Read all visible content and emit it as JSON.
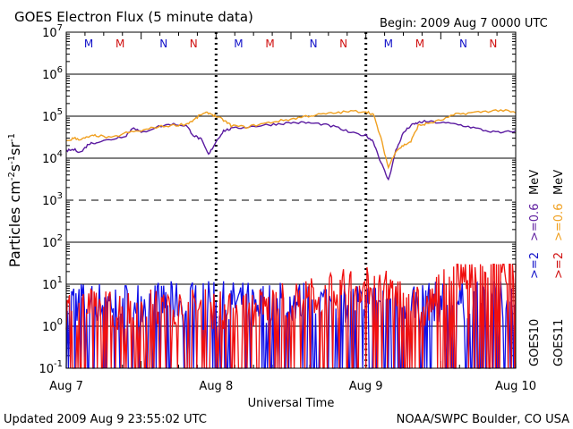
{
  "chart_data": {
    "type": "line",
    "title": "GOES Electron Flux (5 minute data)",
    "begin_label": "Begin: 2009 Aug 7 0000 UTC",
    "xlabel": "Universal Time",
    "ylabel_main": "Particles cm",
    "ylabel_exp1": "-2",
    "ylabel_s": "s",
    "ylabel_exp2": "-1",
    "ylabel_sr": "sr",
    "ylabel_exp3": "-1",
    "x_unit": "day offset from 2009 Aug 7 0000 UTC",
    "xlim": [
      0,
      3
    ],
    "ylim": [
      0.1,
      10000000
    ],
    "yscale": "log",
    "x_ticks": [
      {
        "x": 0,
        "label": "Aug 7"
      },
      {
        "x": 1,
        "label": "Aug 8"
      },
      {
        "x": 2,
        "label": "Aug 9"
      },
      {
        "x": 3,
        "label": "Aug 10"
      }
    ],
    "y_ticks": [
      {
        "v": 10000000,
        "base": "10",
        "exp": "7"
      },
      {
        "v": 1000000,
        "base": "10",
        "exp": "6"
      },
      {
        "v": 100000,
        "base": "10",
        "exp": "5"
      },
      {
        "v": 10000,
        "base": "10",
        "exp": "4"
      },
      {
        "v": 1000,
        "base": "10",
        "exp": "3"
      },
      {
        "v": 100,
        "base": "10",
        "exp": "2"
      },
      {
        "v": 10,
        "base": "10",
        "exp": "1"
      },
      {
        "v": 1,
        "base": "10",
        "exp": "0"
      },
      {
        "v": 0.1,
        "base": "10",
        "exp": "-1"
      }
    ],
    "solid_gridlines": [
      1000000,
      100000,
      10000,
      100,
      10,
      1
    ],
    "dashed_gridlines": [
      1000
    ],
    "mn_markers": [
      {
        "x": 0.15,
        "label": "M",
        "color": "#1010c8"
      },
      {
        "x": 0.36,
        "label": "M",
        "color": "#d01010"
      },
      {
        "x": 0.65,
        "label": "N",
        "color": "#1010c8"
      },
      {
        "x": 0.85,
        "label": "N",
        "color": "#d01010"
      },
      {
        "x": 1.15,
        "label": "M",
        "color": "#1010c8"
      },
      {
        "x": 1.36,
        "label": "M",
        "color": "#d01010"
      },
      {
        "x": 1.65,
        "label": "N",
        "color": "#1010c8"
      },
      {
        "x": 1.85,
        "label": "N",
        "color": "#d01010"
      },
      {
        "x": 2.15,
        "label": "M",
        "color": "#1010c8"
      },
      {
        "x": 2.36,
        "label": "M",
        "color": "#d01010"
      },
      {
        "x": 2.65,
        "label": "N",
        "color": "#1010c8"
      },
      {
        "x": 2.85,
        "label": "N",
        "color": "#d01010"
      }
    ],
    "legend": [
      {
        "sat": "GOES10",
        "range": ">=2",
        "mev": ">=0.6",
        "color_range": "#1010c8",
        "color_mev": "#6020a0"
      },
      {
        "sat": "GOES11",
        "range": ">=2",
        "mev": ">=0.6",
        "color_range": "#d01010",
        "color_mev": "#f0a020"
      }
    ],
    "mev_unit": "MeV",
    "series": [
      {
        "name": "GOES10 >=0.6 MeV",
        "color": "#5a1aa0",
        "x": [
          0,
          0.05,
          0.1,
          0.15,
          0.2,
          0.3,
          0.4,
          0.45,
          0.5,
          0.6,
          0.7,
          0.8,
          0.85,
          0.9,
          0.95,
          1.0,
          1.05,
          1.1,
          1.2,
          1.3,
          1.4,
          1.5,
          1.6,
          1.7,
          1.8,
          1.9,
          2.0,
          2.05,
          2.1,
          2.15,
          2.2,
          2.25,
          2.3,
          2.35,
          2.4,
          2.5,
          2.6,
          2.7,
          2.8,
          2.9,
          3.0
        ],
        "y": [
          15000,
          16000,
          14000,
          22000,
          24000,
          28000,
          35000,
          55000,
          40000,
          55000,
          65000,
          60000,
          35000,
          28000,
          12000,
          25000,
          45000,
          50000,
          55000,
          60000,
          65000,
          70000,
          70000,
          65000,
          55000,
          40000,
          35000,
          25000,
          8000,
          3000,
          15000,
          40000,
          60000,
          70000,
          75000,
          70000,
          65000,
          55000,
          45000,
          40000,
          45000
        ]
      },
      {
        "name": "GOES11 >=0.6 MeV",
        "color": "#f0a020",
        "x": [
          0,
          0.05,
          0.1,
          0.15,
          0.2,
          0.3,
          0.4,
          0.5,
          0.6,
          0.7,
          0.8,
          0.85,
          0.9,
          0.95,
          1.0,
          1.05,
          1.1,
          1.2,
          1.3,
          1.4,
          1.5,
          1.6,
          1.7,
          1.8,
          1.9,
          2.0,
          2.05,
          2.1,
          2.15,
          2.2,
          2.25,
          2.3,
          2.35,
          2.4,
          2.5,
          2.6,
          2.7,
          2.8,
          2.9,
          3.0
        ],
        "y": [
          25000,
          30000,
          28000,
          32000,
          35000,
          30000,
          40000,
          45000,
          55000,
          60000,
          65000,
          80000,
          110000,
          120000,
          100000,
          80000,
          60000,
          55000,
          65000,
          75000,
          85000,
          100000,
          110000,
          120000,
          130000,
          130000,
          110000,
          30000,
          6000,
          15000,
          20000,
          25000,
          60000,
          65000,
          80000,
          110000,
          120000,
          130000,
          140000,
          120000
        ]
      },
      {
        "name": "GOES10 >=2 MeV",
        "color": "#1010e8",
        "x": [
          0,
          0.25,
          0.5,
          0.75,
          1.0,
          1.25,
          1.5,
          1.75,
          2.0,
          2.25,
          2.5,
          2.75,
          3.0
        ],
        "y": [
          3,
          3,
          3,
          3,
          3,
          3,
          3,
          3,
          3,
          3,
          3,
          3,
          3
        ],
        "band": [
          0.1,
          8
        ]
      },
      {
        "name": "GOES11 >=2 MeV",
        "color": "#f01010",
        "x": [
          0,
          0.25,
          0.5,
          0.75,
          1.0,
          1.25,
          1.5,
          1.75,
          2.0,
          2.25,
          2.4,
          2.6,
          2.8,
          3.0
        ],
        "y": [
          2,
          2,
          2,
          2,
          2,
          2,
          3,
          5,
          8,
          4,
          2,
          15,
          25,
          20
        ],
        "band": [
          0.1,
          15
        ]
      }
    ]
  },
  "footer": {
    "updated": "Updated 2009 Aug  9 23:55:02 UTC",
    "credit": "NOAA/SWPC Boulder, CO USA"
  }
}
